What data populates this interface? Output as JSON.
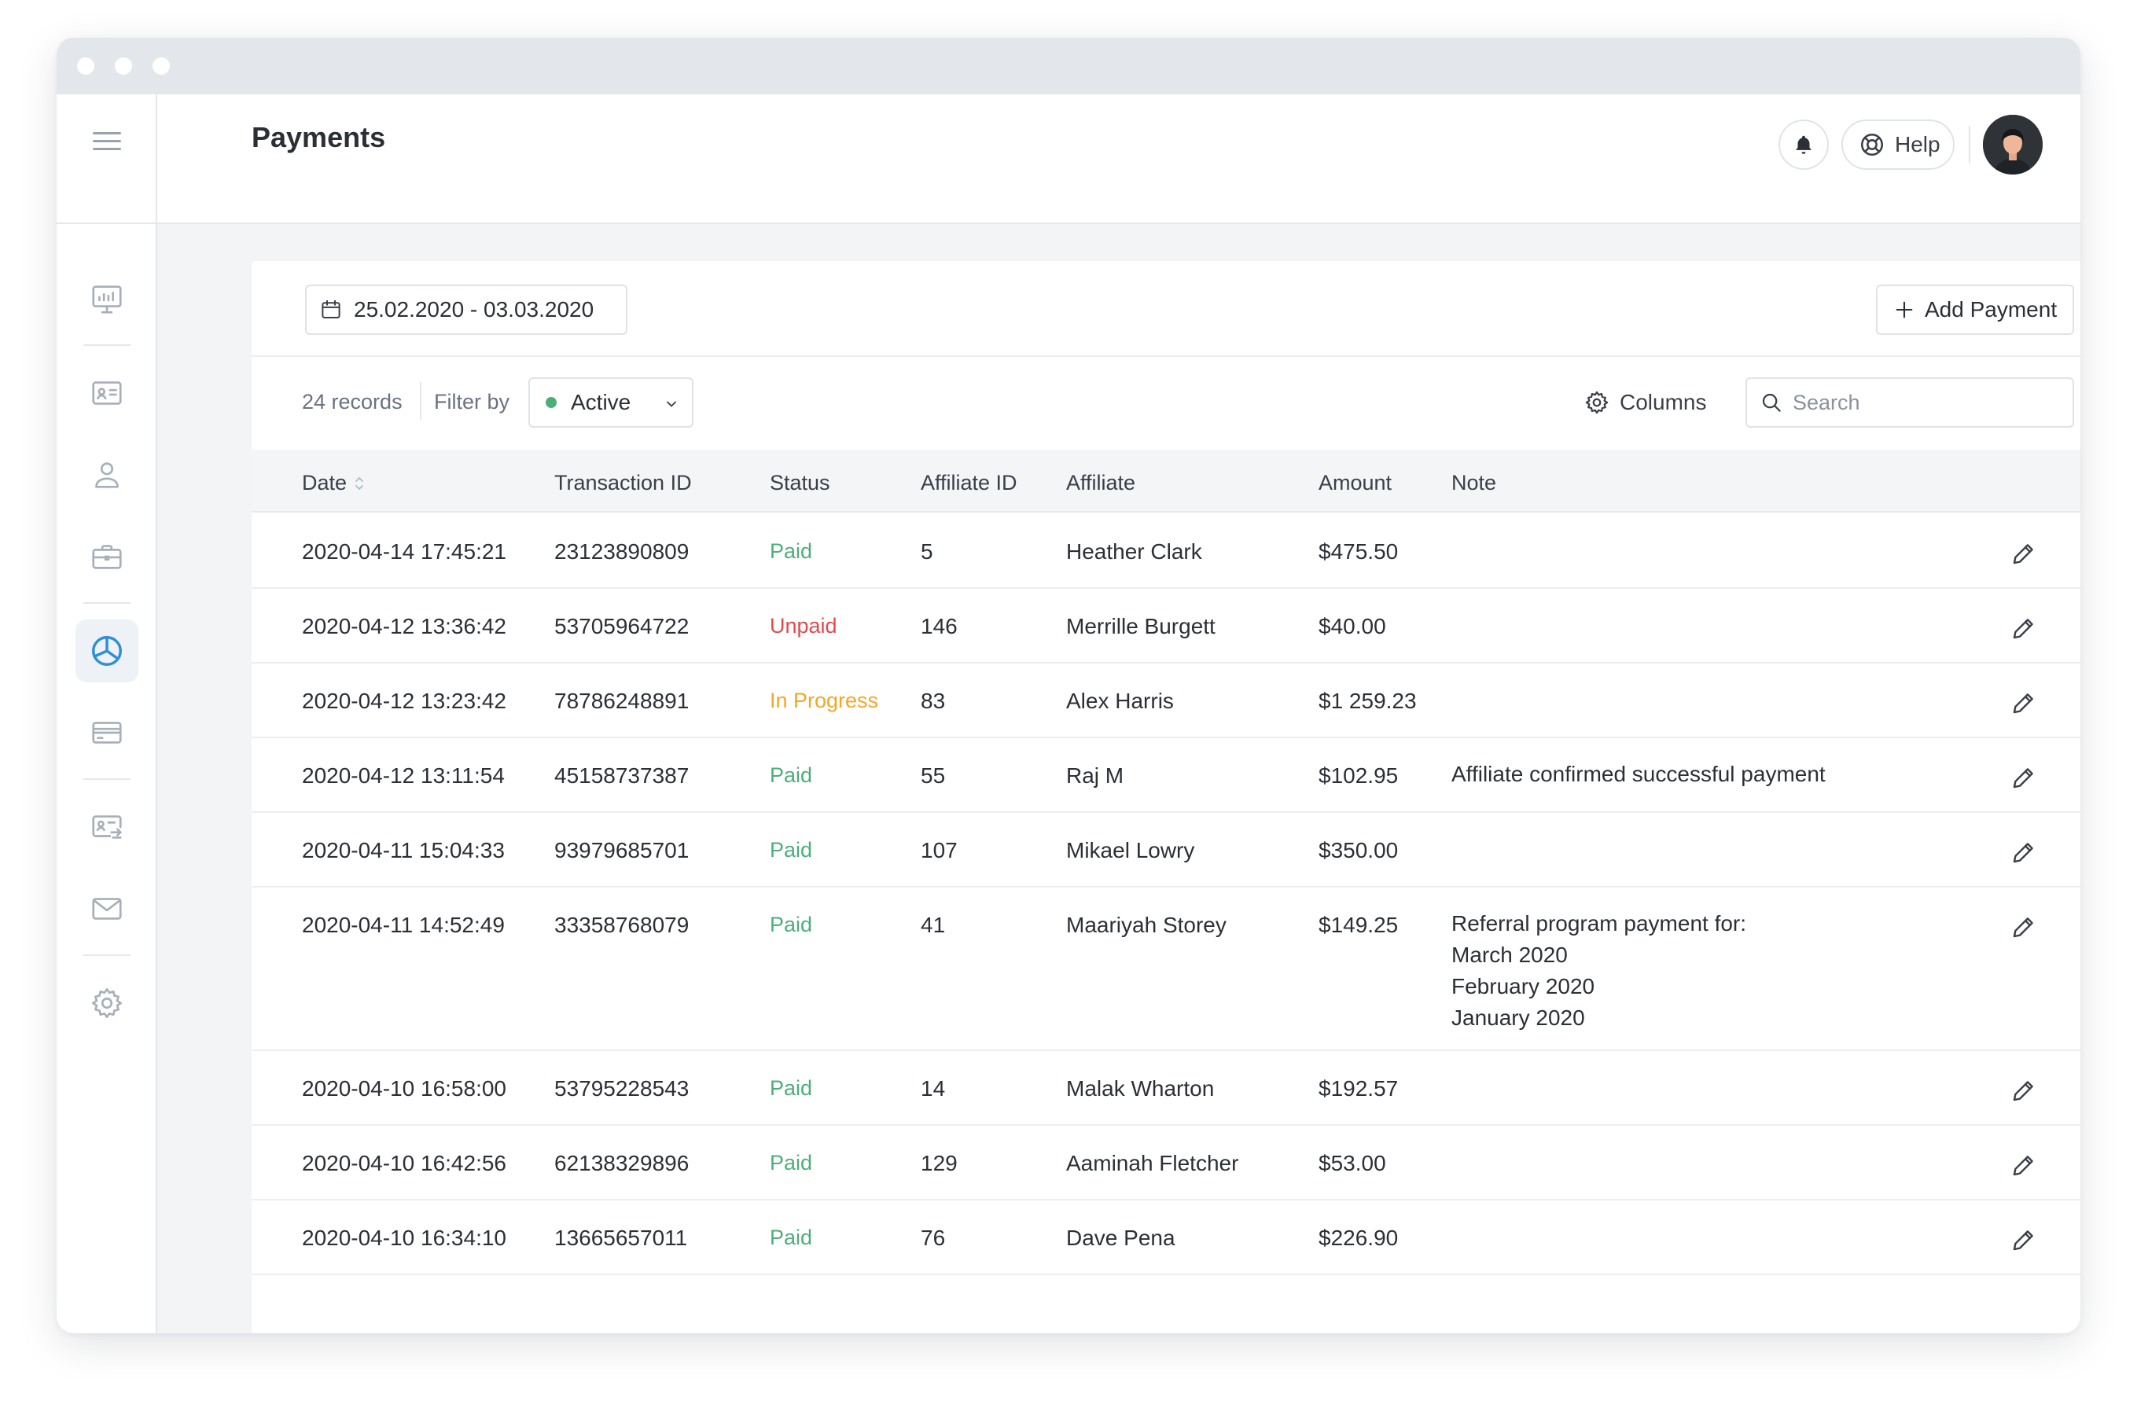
{
  "header": {
    "title": "Payments",
    "help_label": "Help"
  },
  "sidebar": {
    "items": [
      {
        "icon": "dashboard-icon"
      },
      {
        "icon": "id-card-icon"
      },
      {
        "icon": "user-icon"
      },
      {
        "icon": "briefcase-icon"
      },
      {
        "icon": "payments-icon",
        "active": true
      },
      {
        "icon": "credit-card-icon"
      },
      {
        "icon": "card-transfer-icon"
      },
      {
        "icon": "mail-icon"
      },
      {
        "icon": "settings-icon"
      }
    ]
  },
  "toolbar": {
    "date_range": "25.02.2020 - 03.03.2020",
    "add_label": "Add Payment",
    "records": "24 records",
    "filter_label": "Filter by",
    "filter_value": "Active",
    "columns_label": "Columns",
    "search_placeholder": "Search"
  },
  "table": {
    "headers": {
      "date": "Date",
      "transaction_id": "Transaction ID",
      "status": "Status",
      "affiliate_id": "Affiliate ID",
      "affiliate": "Affiliate",
      "amount": "Amount",
      "note": "Note"
    },
    "rows": [
      {
        "date": "2020-04-14 17:45:21",
        "transaction_id": "23123890809",
        "status": "Paid",
        "affiliate_id": "5",
        "affiliate": "Heather Clark",
        "amount": "$475.50",
        "note": []
      },
      {
        "date": "2020-04-12 13:36:42",
        "transaction_id": "53705964722",
        "status": "Unpaid",
        "affiliate_id": "146",
        "affiliate": "Merrille Burgett",
        "amount": "$40.00",
        "note": []
      },
      {
        "date": "2020-04-12 13:23:42",
        "transaction_id": "78786248891",
        "status": "In Progress",
        "affiliate_id": "83",
        "affiliate": "Alex Harris",
        "amount": "$1 259.23",
        "note": []
      },
      {
        "date": "2020-04-12 13:11:54",
        "transaction_id": "45158737387",
        "status": "Paid",
        "affiliate_id": "55",
        "affiliate": "Raj M",
        "amount": "$102.95",
        "note": [
          "Affiliate confirmed successful payment"
        ]
      },
      {
        "date": "2020-04-11 15:04:33",
        "transaction_id": "93979685701",
        "status": "Paid",
        "affiliate_id": "107",
        "affiliate": "Mikael Lowry",
        "amount": "$350.00",
        "note": []
      },
      {
        "date": "2020-04-11 14:52:49",
        "transaction_id": "33358768079",
        "status": "Paid",
        "affiliate_id": "41",
        "affiliate": "Maariyah Storey",
        "amount": "$149.25",
        "note": [
          "Referral program payment for:",
          "March 2020",
          "February 2020",
          "January 2020"
        ]
      },
      {
        "date": "2020-04-10 16:58:00",
        "transaction_id": "53795228543",
        "status": "Paid",
        "affiliate_id": "14",
        "affiliate": "Malak Wharton",
        "amount": "$192.57",
        "note": []
      },
      {
        "date": "2020-04-10 16:42:56",
        "transaction_id": "62138329896",
        "status": "Paid",
        "affiliate_id": "129",
        "affiliate": "Aaminah Fletcher",
        "amount": "$53.00",
        "note": []
      },
      {
        "date": "2020-04-10 16:34:10",
        "transaction_id": "13665657011",
        "status": "Paid",
        "affiliate_id": "76",
        "affiliate": "Dave Pena",
        "amount": "$226.90",
        "note": []
      }
    ]
  },
  "colors": {
    "paid": "#4caf7a",
    "unpaid": "#e5484d",
    "in_progress": "#f5a623",
    "active_dot": "#4caf7a",
    "active_nav": "#2f8ed8"
  }
}
